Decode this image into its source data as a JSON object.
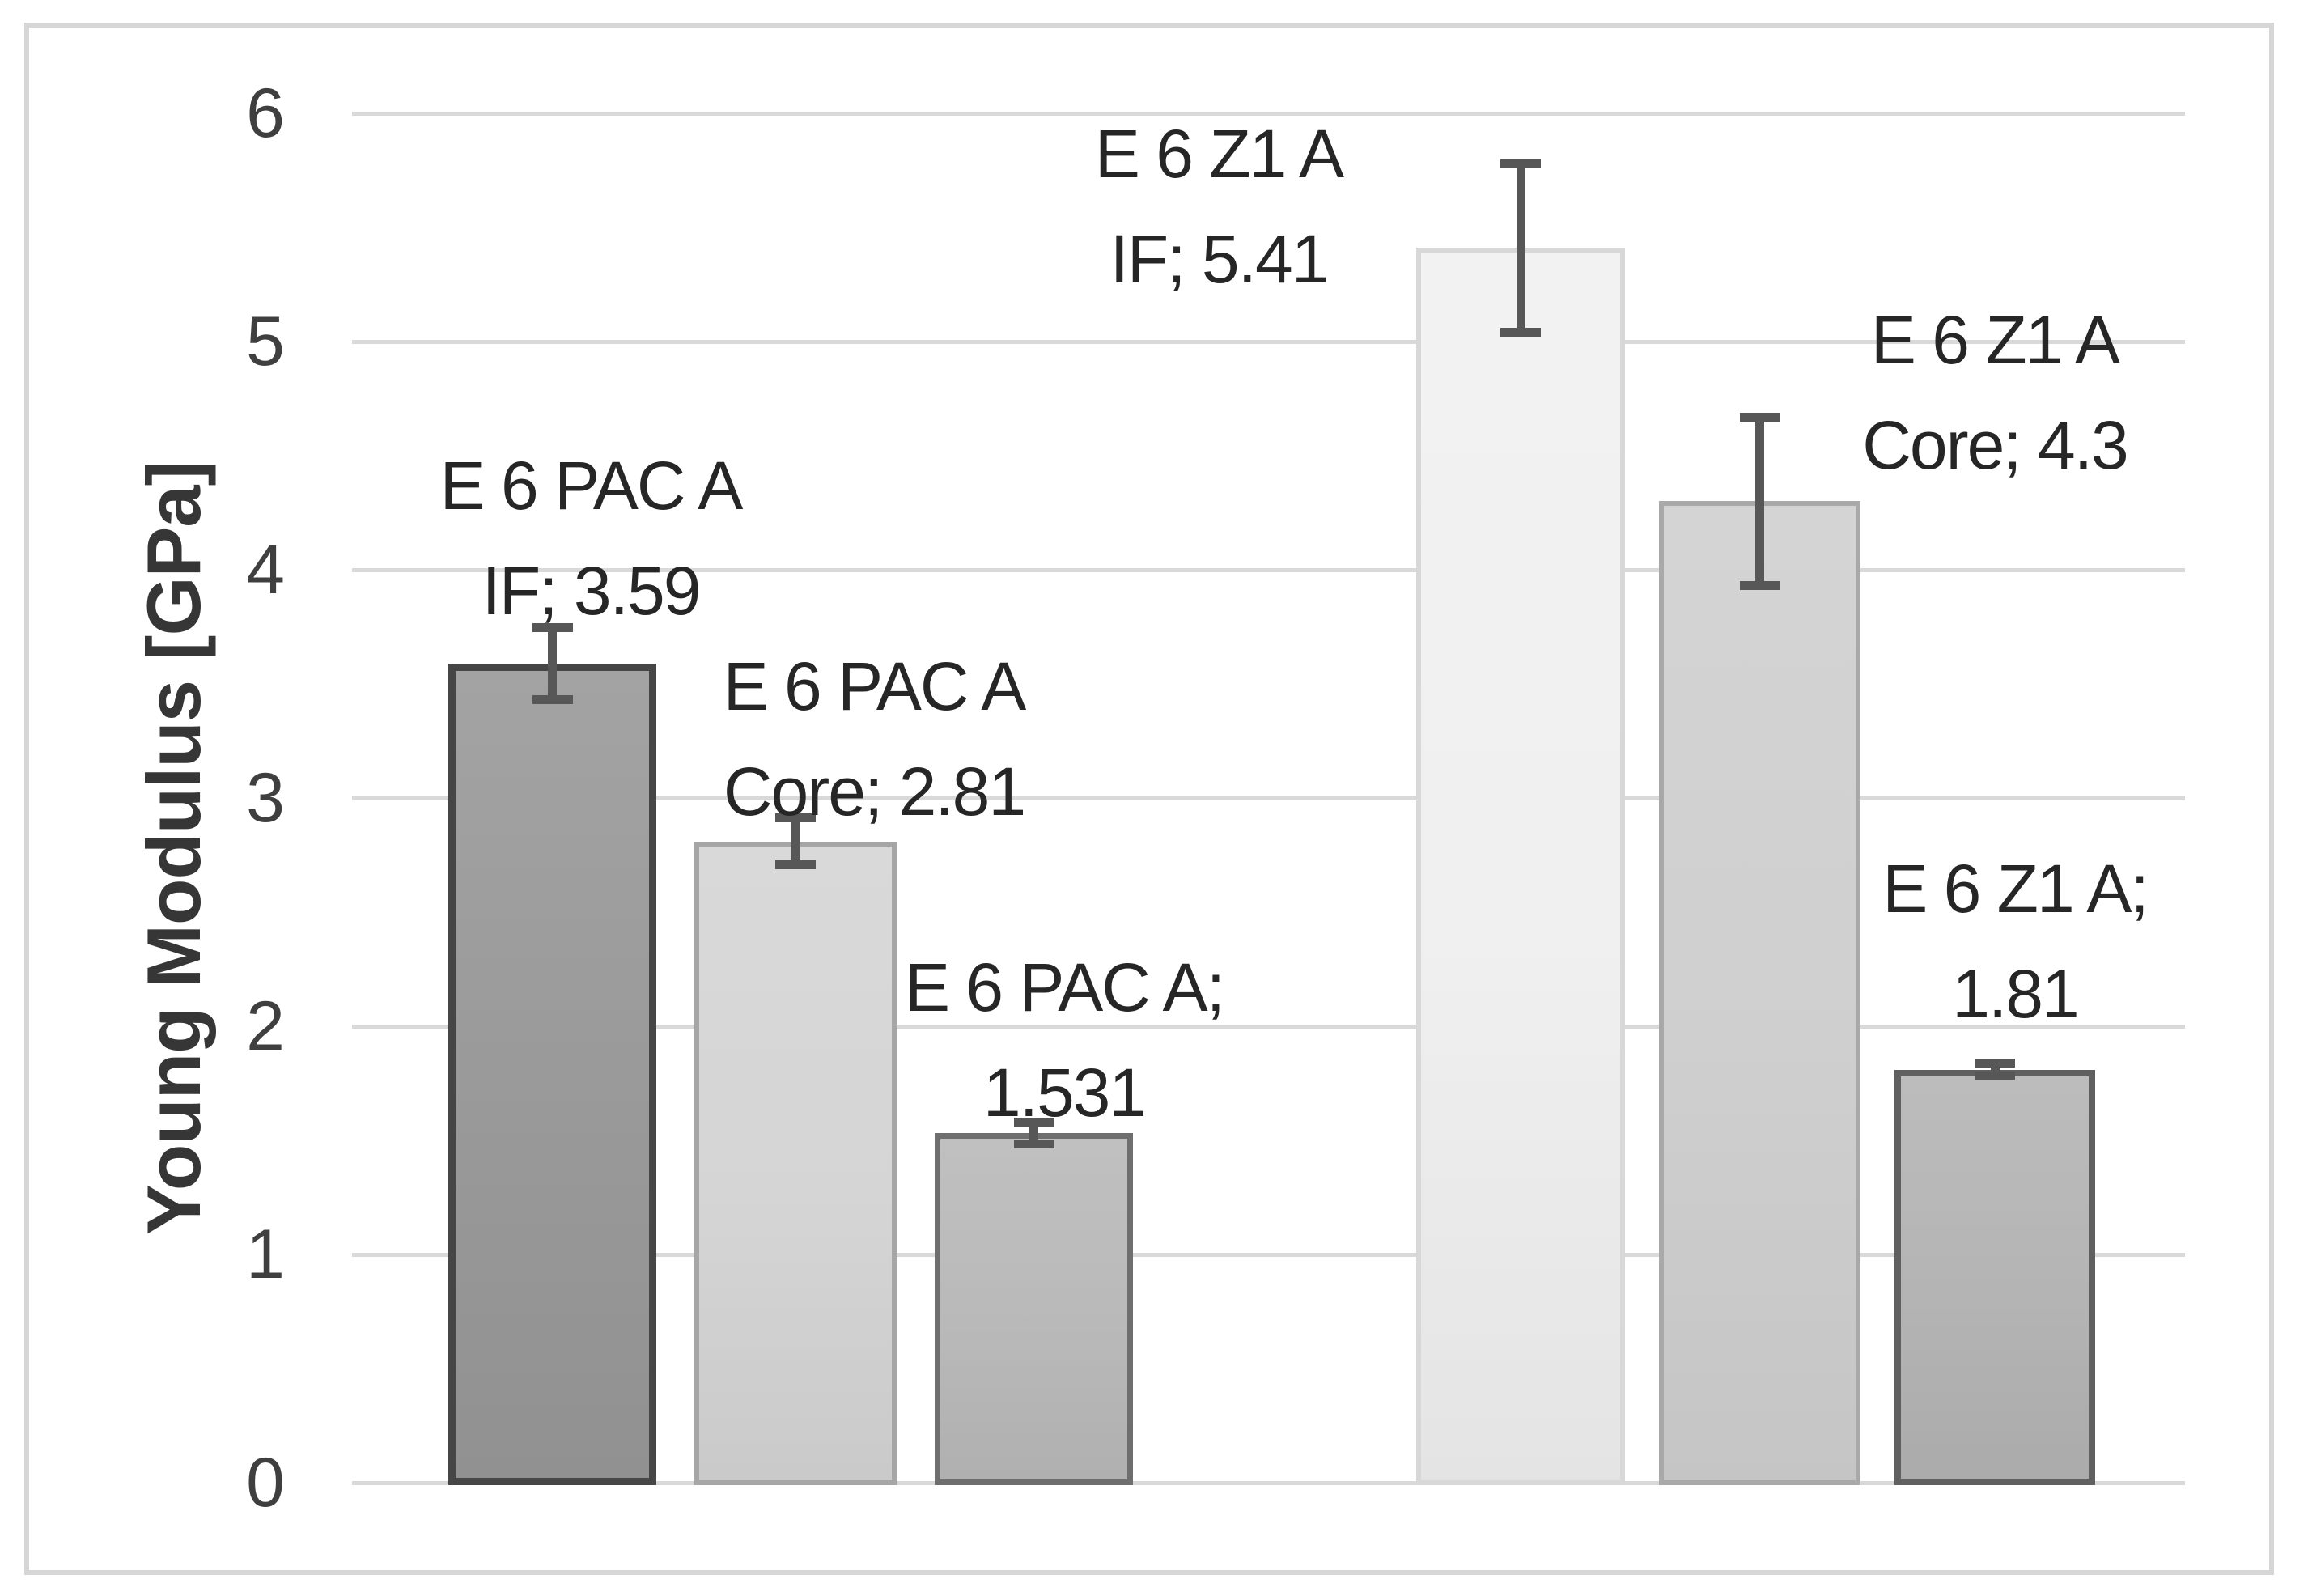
{
  "chart_data": {
    "type": "bar",
    "title": "",
    "xlabel": "",
    "ylabel": "Young Modulus [GPa]",
    "ylim": [
      0,
      6
    ],
    "yticks": [
      6,
      5,
      4,
      3,
      2,
      1,
      0
    ],
    "grid": true,
    "legend_position": "none",
    "bars": [
      {
        "name": "E 6 PAC A IF",
        "label_line1": "E 6 PAC A",
        "label_line2": "IF; 3.59",
        "value": 3.59,
        "error": 0.16,
        "fill": "#999999",
        "border": "#464646"
      },
      {
        "name": "E 6 PAC A Core",
        "label_line1": "E 6 PAC A",
        "label_line2": "Core; 2.81",
        "value": 2.81,
        "error": 0.105,
        "fill": "#d5d5d5",
        "border": "#a6a6a6"
      },
      {
        "name": "E 6 PAC A",
        "label_line1": "E 6 PAC A;",
        "label_line2": "1.531",
        "value": 1.531,
        "error": 0.05,
        "fill": "#b9b9b9",
        "border": "#6e6e6e"
      },
      {
        "name": "E 6 Z1 A IF",
        "label_line1": "E 6 Z1 A",
        "label_line2": "IF; 5.41",
        "value": 5.41,
        "error": 0.37,
        "fill": "#f0f0f0",
        "border": "#d8d8d8"
      },
      {
        "name": "E 6 Z1 A Core",
        "label_line1": "E 6 Z1 A",
        "label_line2": "Core; 4.3",
        "value": 4.3,
        "error": 0.37,
        "fill": "#cfcfcf",
        "border": "#a9a9a9"
      },
      {
        "name": "E 6 Z1 A",
        "label_line1": "E 6 Z1 A;",
        "label_line2": "1.81",
        "value": 1.81,
        "error": 0.03,
        "fill": "#b4b4b4",
        "border": "#606060"
      }
    ],
    "colors": {
      "background": "#ffffff",
      "gridline": "#d9d9d9",
      "chart_border": "#d6d6d6",
      "error_bar": "#575757",
      "tick_text": "#3f3f3f",
      "label_text": "#262626"
    }
  }
}
